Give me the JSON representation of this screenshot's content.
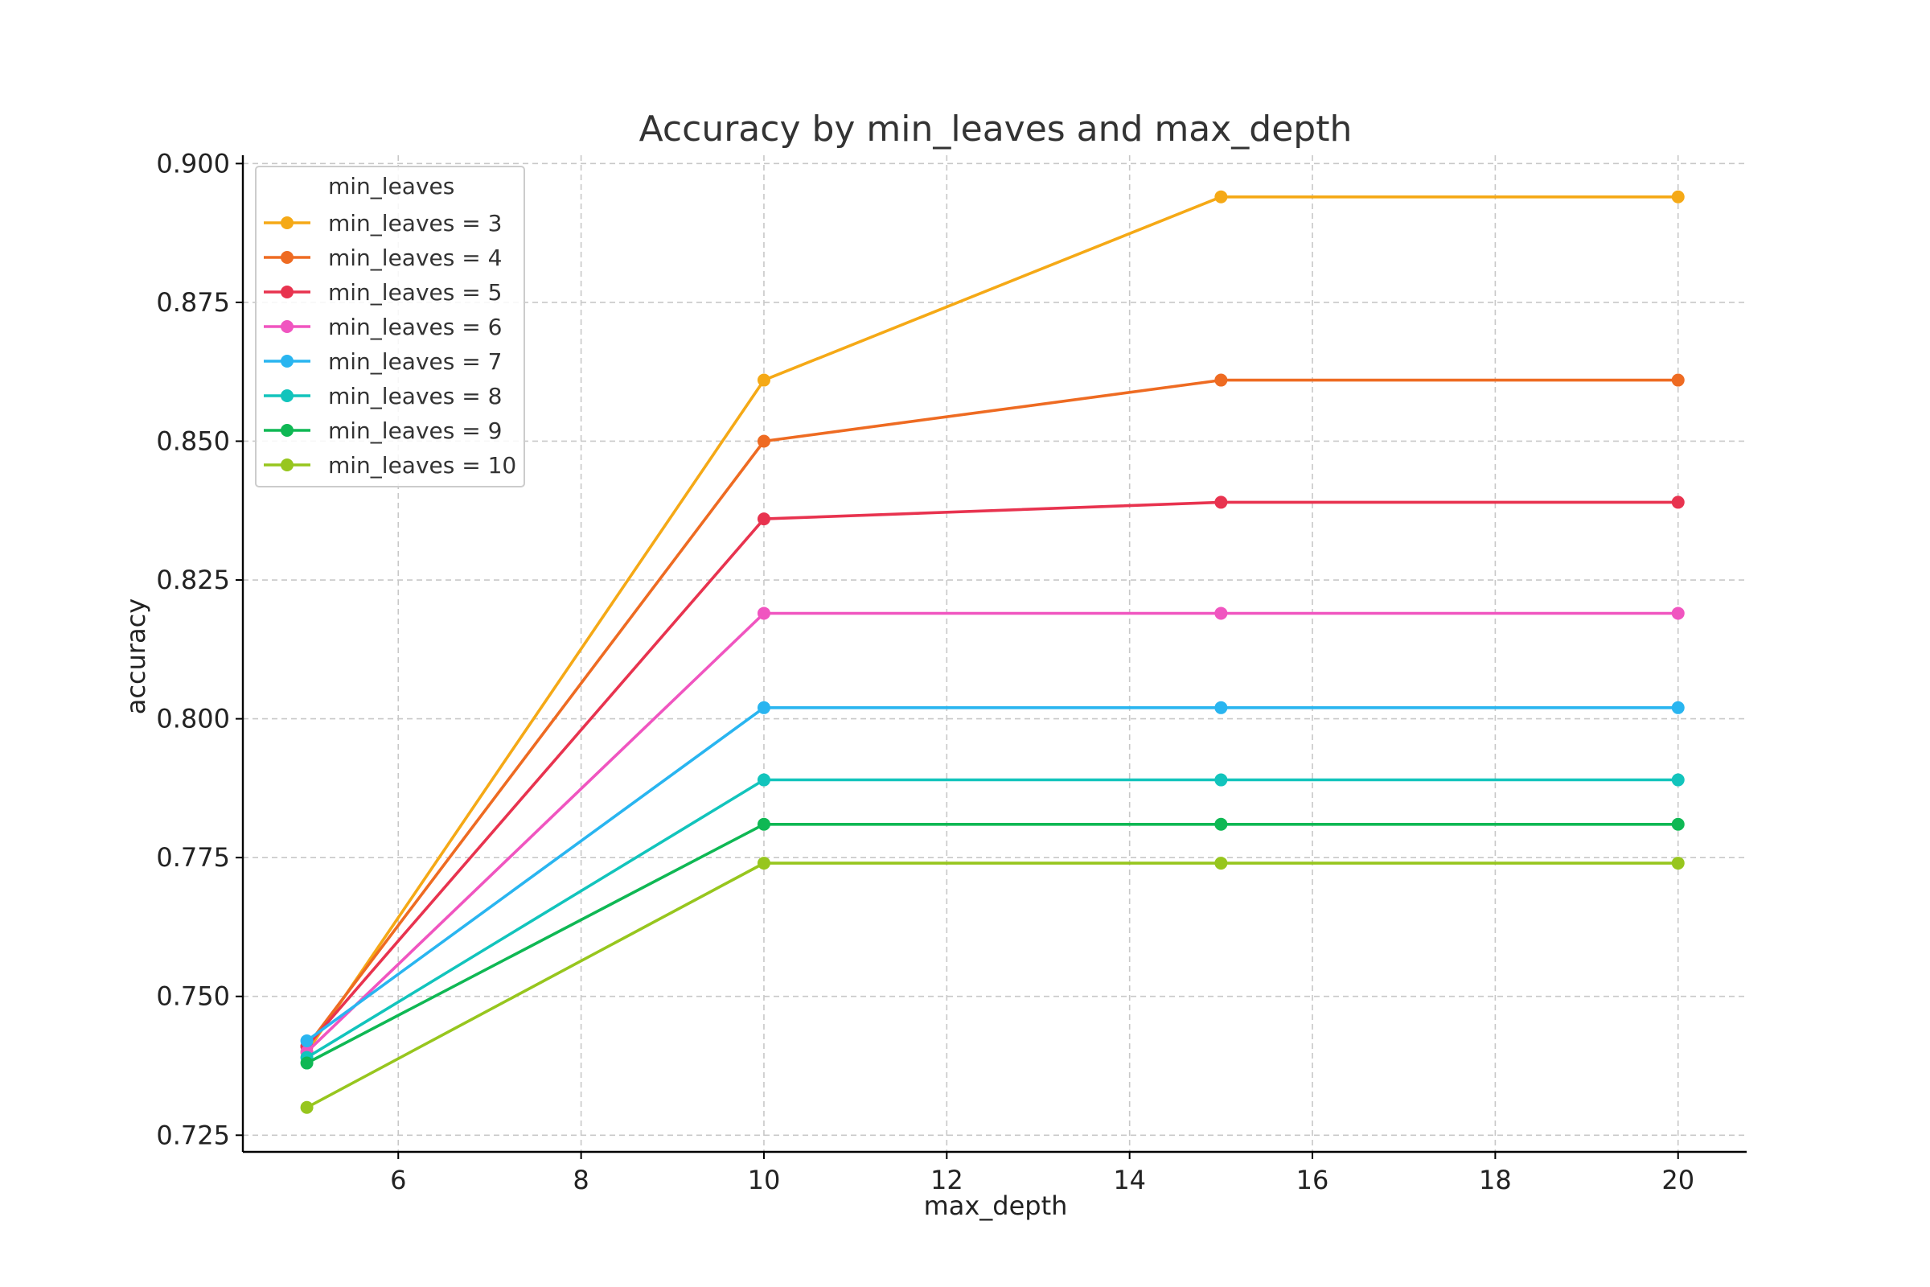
{
  "chart_data": {
    "type": "line",
    "title": "Accuracy by min_leaves and max_depth",
    "xlabel": "max_depth",
    "ylabel": "accuracy",
    "x": [
      5,
      10,
      15,
      20
    ],
    "xlim": [
      4.3,
      20.75
    ],
    "ylim": [
      0.722,
      0.9015
    ],
    "x_ticks": [
      6,
      8,
      10,
      12,
      14,
      16,
      18,
      20
    ],
    "y_ticks": [
      0.725,
      0.75,
      0.775,
      0.8,
      0.825,
      0.85,
      0.875,
      0.9
    ],
    "y_tick_labels": [
      "0.725",
      "0.750",
      "0.775",
      "0.800",
      "0.825",
      "0.850",
      "0.875",
      "0.900"
    ],
    "grid": true,
    "legend_title": "min_leaves",
    "legend_position": "top-left",
    "series": [
      {
        "name": "min_leaves = 3",
        "color": "#F5A916",
        "values": [
          0.74,
          0.861,
          0.894,
          0.894
        ]
      },
      {
        "name": "min_leaves = 4",
        "color": "#EE6B22",
        "values": [
          0.741,
          0.85,
          0.861,
          0.861
        ]
      },
      {
        "name": "min_leaves = 5",
        "color": "#E8334F",
        "values": [
          0.741,
          0.836,
          0.839,
          0.839
        ]
      },
      {
        "name": "min_leaves = 6",
        "color": "#F055C0",
        "values": [
          0.74,
          0.819,
          0.819,
          0.819
        ]
      },
      {
        "name": "min_leaves = 7",
        "color": "#29B5F0",
        "values": [
          0.742,
          0.802,
          0.802,
          0.802
        ]
      },
      {
        "name": "min_leaves = 8",
        "color": "#12C4BC",
        "values": [
          0.739,
          0.789,
          0.789,
          0.789
        ]
      },
      {
        "name": "min_leaves = 9",
        "color": "#0FB854",
        "values": [
          0.738,
          0.781,
          0.781,
          0.781
        ]
      },
      {
        "name": "min_leaves = 10",
        "color": "#97C61E",
        "values": [
          0.73,
          0.774,
          0.774,
          0.774
        ]
      }
    ]
  }
}
